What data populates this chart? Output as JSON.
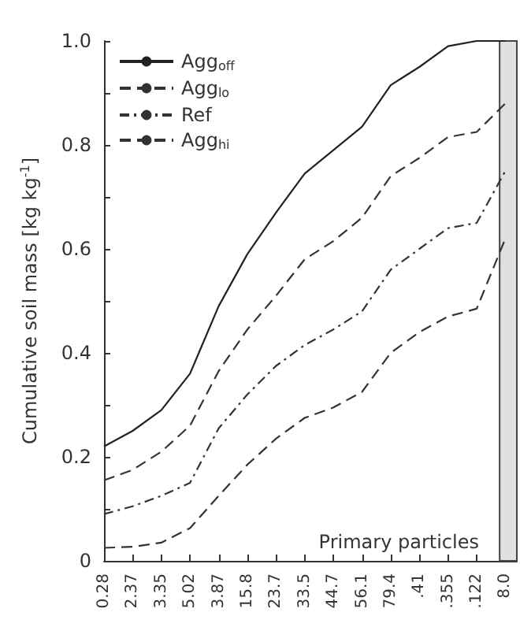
{
  "chart_data": {
    "type": "line",
    "ylabel": "Cumulative soil mass [kg kg$^{-1}$]",
    "categories": [
      "0.28",
      "2.37",
      "3.35",
      "5.02",
      "3.87",
      "15.8",
      "23.7",
      "33.5",
      "44.7",
      "56.1",
      "79.4",
      ".41",
      ".355",
      ".122",
      "8.0"
    ],
    "series": [
      {
        "name": "Agg$_{off}$",
        "color": "#222222",
        "line_style": "solid",
        "values": [
          0.22,
          0.25,
          0.29,
          0.36,
          0.49,
          0.59,
          0.67,
          0.745,
          0.79,
          0.835,
          0.915,
          0.95,
          0.99,
          1.0,
          1.0
        ]
      },
      {
        "name": "Agg$_{lo}$",
        "color": "#333333",
        "line_style": "dashed",
        "values": [
          0.155,
          0.175,
          0.21,
          0.26,
          0.365,
          0.445,
          0.51,
          0.58,
          0.615,
          0.66,
          0.74,
          0.775,
          0.815,
          0.825,
          0.88
        ]
      },
      {
        "name": "Ref",
        "color": "#333333",
        "line_style": "dotted",
        "values": [
          0.09,
          0.105,
          0.125,
          0.15,
          0.255,
          0.32,
          0.375,
          0.415,
          0.445,
          0.48,
          0.56,
          0.6,
          0.64,
          0.65,
          0.75
        ]
      },
      {
        "name": "Agg$_{hi}$",
        "color": "#333333",
        "line_style": "dashed",
        "values": [
          0.025,
          0.027,
          0.035,
          0.063,
          0.125,
          0.185,
          0.235,
          0.275,
          0.295,
          0.325,
          0.4,
          0.44,
          0.47,
          0.485,
          0.62
        ]
      }
    ],
    "ylim": [
      0,
      1
    ],
    "yticks": [
      0,
      {
        "value": 0.1,
        "label": null
      },
      0.2,
      {
        "value": 0.3,
        "label": null
      },
      0.4,
      {
        "value": 0.5,
        "label": null
      },
      0.6,
      {
        "value": 0.7,
        "label": null
      },
      0.8,
      {
        "value": 0.9,
        "label": null
      },
      {
        "value": 1,
        "label": "1.0"
      }
    ],
    "bands": [
      {
        "axis": "x",
        "from": "8.0",
        "to": "8.0",
        "color": "#e0e0e0"
      }
    ],
    "annotations": [
      "Primary particles"
    ],
    "legend": "top left",
    "grid": false,
    "marker": "none"
  }
}
